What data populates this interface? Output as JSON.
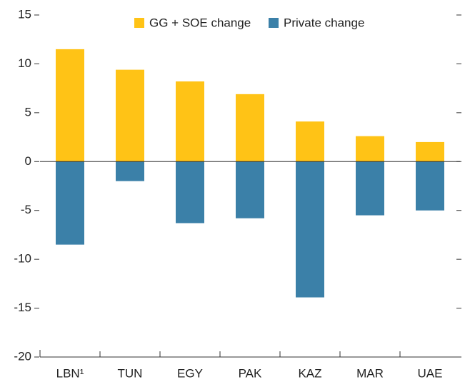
{
  "chart_data": {
    "type": "bar",
    "stacked": true,
    "categories": [
      "LBN¹",
      "TUN",
      "EGY",
      "PAK",
      "KAZ",
      "MAR",
      "UAE"
    ],
    "series": [
      {
        "name": "GG + SOE change",
        "color": "#ffc316",
        "values": [
          11.5,
          9.4,
          8.2,
          6.9,
          4.1,
          2.6,
          2.0
        ]
      },
      {
        "name": "Private change",
        "color": "#3b80a8",
        "values": [
          -8.5,
          -2.0,
          -6.3,
          -5.8,
          -13.9,
          -5.5,
          -5.0
        ]
      }
    ],
    "ylim": [
      -20,
      15
    ],
    "yticks": [
      -20,
      -15,
      -10,
      -5,
      0,
      5,
      10,
      15
    ],
    "legend": "top",
    "grid": false
  }
}
